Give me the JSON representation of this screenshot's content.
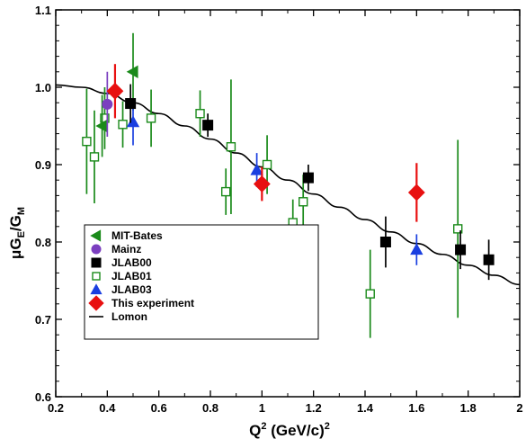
{
  "chart_data": {
    "type": "scatter",
    "title": "",
    "xlabel": {
      "main": "Q",
      "sup": "2",
      "units_open": " (GeV/c)",
      "units_sup": "2"
    },
    "ylabel": {
      "mu": "μ",
      "G1": "G",
      "sub1": "E",
      "slash": "/",
      "G2": "G",
      "sub2": "M"
    },
    "xlim": [
      0.2,
      2.0
    ],
    "ylim": [
      0.6,
      1.1
    ],
    "xticks": [
      0.2,
      0.4,
      0.6,
      0.8,
      1.0,
      1.2,
      1.4,
      1.6,
      1.8,
      2.0
    ],
    "yticks": [
      0.6,
      0.7,
      0.8,
      0.9,
      1.0,
      1.1
    ],
    "xtick_labels": [
      "0.2",
      "0.4",
      "0.6",
      "0.8",
      "1",
      "1.2",
      "1.4",
      "1.6",
      "1.8",
      "2"
    ],
    "ytick_labels": [
      "0.6",
      "0.7",
      "0.8",
      "0.9",
      "1.0",
      "1.1"
    ],
    "legend_position": "bottom-left",
    "series": [
      {
        "name": "MIT-Bates",
        "marker": "triangle-left",
        "color": "#1a8a1a",
        "filled": true,
        "points": [
          {
            "x": 0.38,
            "y": 0.95,
            "err": 0.04
          },
          {
            "x": 0.5,
            "y": 1.02,
            "err": 0.05
          }
        ]
      },
      {
        "name": "Mainz",
        "marker": "circle",
        "color": "#7b3fbf",
        "filled": true,
        "points": [
          {
            "x": 0.4,
            "y": 0.978,
            "err": 0.042
          }
        ]
      },
      {
        "name": "JLAB00",
        "marker": "square",
        "color": "#000000",
        "filled": true,
        "points": [
          {
            "x": 0.49,
            "y": 0.979,
            "err": 0.025
          },
          {
            "x": 0.79,
            "y": 0.951,
            "err": 0.015
          },
          {
            "x": 1.18,
            "y": 0.883,
            "err": 0.017
          },
          {
            "x": 1.48,
            "y": 0.8,
            "err": 0.033
          },
          {
            "x": 1.77,
            "y": 0.79,
            "err": 0.025
          },
          {
            "x": 1.88,
            "y": 0.777,
            "err": 0.026
          }
        ]
      },
      {
        "name": "JLAB01",
        "marker": "square",
        "color": "#1a8a1a",
        "filled": false,
        "points": [
          {
            "x": 0.32,
            "y": 0.93,
            "err": 0.068
          },
          {
            "x": 0.35,
            "y": 0.91,
            "err": 0.06
          },
          {
            "x": 0.39,
            "y": 0.96,
            "err": 0.04
          },
          {
            "x": 0.46,
            "y": 0.952,
            "err": 0.03
          },
          {
            "x": 0.57,
            "y": 0.96,
            "err": 0.037
          },
          {
            "x": 0.76,
            "y": 0.966,
            "err": 0.03
          },
          {
            "x": 0.86,
            "y": 0.865,
            "err": 0.03
          },
          {
            "x": 0.88,
            "y": 0.923,
            "err": 0.087
          },
          {
            "x": 1.02,
            "y": 0.9,
            "err": 0.038
          },
          {
            "x": 1.12,
            "y": 0.825,
            "err": 0.03
          },
          {
            "x": 1.16,
            "y": 0.852,
            "err": 0.035
          },
          {
            "x": 1.42,
            "y": 0.733,
            "err": 0.057
          },
          {
            "x": 1.76,
            "y": 0.817,
            "err": 0.115
          }
        ]
      },
      {
        "name": "JLAB03",
        "marker": "triangle-up",
        "color": "#1a3fe0",
        "filled": true,
        "points": [
          {
            "x": 0.5,
            "y": 0.955,
            "err": 0.03
          },
          {
            "x": 0.98,
            "y": 0.893,
            "err": 0.022
          },
          {
            "x": 1.6,
            "y": 0.79,
            "err": 0.02
          }
        ]
      },
      {
        "name": "This experiment",
        "marker": "diamond",
        "color": "#e81010",
        "filled": true,
        "points": [
          {
            "x": 0.43,
            "y": 0.995,
            "err": 0.035
          },
          {
            "x": 1.0,
            "y": 0.875,
            "err": 0.022
          },
          {
            "x": 1.6,
            "y": 0.864,
            "err": 0.038
          }
        ]
      },
      {
        "name": "Lomon",
        "marker": "line",
        "color": "#000000",
        "curve": [
          {
            "x": 0.2,
            "y": 1.003
          },
          {
            "x": 0.3,
            "y": 1.0
          },
          {
            "x": 0.4,
            "y": 0.992
          },
          {
            "x": 0.5,
            "y": 0.98
          },
          {
            "x": 0.6,
            "y": 0.966
          },
          {
            "x": 0.7,
            "y": 0.95
          },
          {
            "x": 0.8,
            "y": 0.933
          },
          {
            "x": 0.9,
            "y": 0.915
          },
          {
            "x": 1.0,
            "y": 0.897
          },
          {
            "x": 1.1,
            "y": 0.88
          },
          {
            "x": 1.2,
            "y": 0.862
          },
          {
            "x": 1.3,
            "y": 0.845
          },
          {
            "x": 1.4,
            "y": 0.829
          },
          {
            "x": 1.5,
            "y": 0.813
          },
          {
            "x": 1.6,
            "y": 0.798
          },
          {
            "x": 1.7,
            "y": 0.784
          },
          {
            "x": 1.8,
            "y": 0.77
          },
          {
            "x": 1.9,
            "y": 0.757
          },
          {
            "x": 2.0,
            "y": 0.745
          }
        ]
      }
    ]
  }
}
